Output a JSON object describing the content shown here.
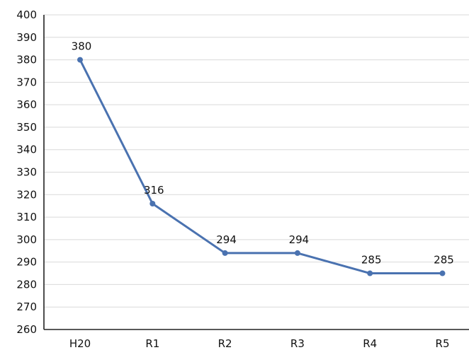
{
  "chart_data": {
    "type": "line",
    "title": "",
    "xlabel": "",
    "ylabel": "",
    "categories": [
      "H20",
      "R1",
      "R2",
      "R3",
      "R4",
      "R5"
    ],
    "series": [
      {
        "values": [
          380,
          316,
          294,
          294,
          285,
          285
        ]
      }
    ],
    "ylim": [
      260,
      400
    ],
    "yticks": [
      "260",
      "270",
      "280",
      "290",
      "300",
      "310",
      "320",
      "330",
      "340",
      "350",
      "360",
      "370",
      "380",
      "390",
      "400"
    ],
    "data_labels": [
      "380",
      "316",
      "294",
      "294",
      "285",
      "285"
    ],
    "grid": true,
    "legend": "none",
    "line_color": "#4a72b0"
  }
}
